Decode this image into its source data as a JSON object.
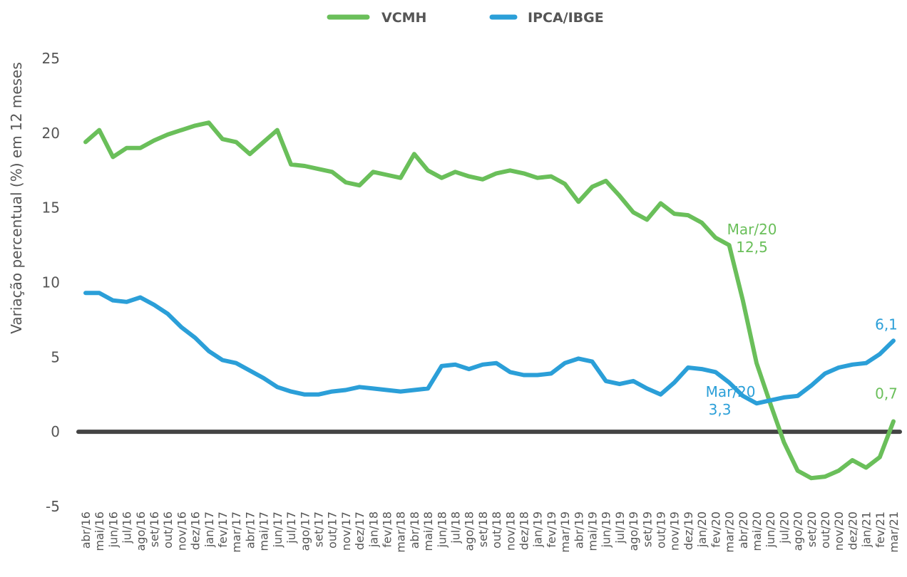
{
  "chart_data": {
    "type": "line",
    "categories": [
      "abr/16",
      "mai/16",
      "jun/16",
      "jul/16",
      "ago/16",
      "set/16",
      "out/16",
      "nov/16",
      "dez/16",
      "jan/17",
      "fev/17",
      "mar/17",
      "abr/17",
      "mai/17",
      "jun/17",
      "jul/17",
      "ago/17",
      "set/17",
      "out/17",
      "nov/17",
      "dez/17",
      "jan/18",
      "fev/18",
      "mar/18",
      "abr/18",
      "mai/18",
      "jun/18",
      "jul/18",
      "ago/18",
      "set/18",
      "out/18",
      "nov/18",
      "dez/18",
      "jan/19",
      "fev/19",
      "mar/19",
      "abr/19",
      "mai/19",
      "jun/19",
      "jul/19",
      "ago/19",
      "set/19",
      "out/19",
      "nov/19",
      "dez/19",
      "jan/20",
      "fev/20",
      "mar/20",
      "abr/20",
      "mai/20",
      "jun/20",
      "jul/20",
      "ago/20",
      "set/20",
      "out/20",
      "nov/20",
      "dez/20",
      "jan/21",
      "fev/21",
      "mar/21"
    ],
    "series": [
      {
        "name": "VCMH",
        "color": "#6abf5a",
        "values": [
          19.4,
          20.2,
          18.4,
          19.0,
          19.0,
          19.5,
          19.9,
          20.2,
          20.5,
          20.7,
          19.6,
          19.4,
          18.6,
          19.4,
          20.2,
          17.9,
          17.8,
          17.6,
          17.4,
          16.7,
          16.5,
          17.4,
          17.2,
          17.0,
          18.6,
          17.5,
          17.0,
          17.4,
          17.1,
          16.9,
          17.3,
          17.5,
          17.3,
          17.0,
          17.1,
          16.6,
          15.4,
          16.4,
          16.8,
          15.8,
          14.7,
          14.2,
          15.3,
          14.6,
          14.5,
          14.0,
          13.0,
          12.5,
          8.8,
          4.6,
          1.9,
          -0.7,
          -2.6,
          -3.1,
          -3.0,
          -2.6,
          -1.9,
          -2.4,
          -1.7,
          0.7
        ],
        "value_labels": [
          null,
          null,
          null,
          null,
          null,
          null,
          null,
          null,
          null,
          null,
          null,
          null,
          null,
          null,
          null,
          null,
          null,
          null,
          null,
          null,
          null,
          null,
          null,
          null,
          null,
          null,
          null,
          null,
          null,
          null,
          null,
          null,
          null,
          null,
          null,
          null,
          null,
          null,
          null,
          null,
          null,
          null,
          null,
          null,
          null,
          null,
          null,
          "12,5",
          null,
          null,
          null,
          null,
          null,
          null,
          null,
          null,
          null,
          null,
          null,
          "0,7"
        ]
      },
      {
        "name": "IPCA/IBGE",
        "color": "#2b9fd8",
        "values": [
          9.3,
          9.3,
          8.8,
          8.7,
          9.0,
          8.5,
          7.9,
          7.0,
          6.3,
          5.4,
          4.8,
          4.6,
          4.1,
          3.6,
          3.0,
          2.7,
          2.5,
          2.5,
          2.7,
          2.8,
          3.0,
          2.9,
          2.8,
          2.7,
          2.8,
          2.9,
          4.4,
          4.5,
          4.2,
          4.5,
          4.6,
          4.0,
          3.8,
          3.8,
          3.9,
          4.6,
          4.9,
          4.7,
          3.4,
          3.2,
          3.4,
          2.9,
          2.5,
          3.3,
          4.3,
          4.2,
          4.0,
          3.3,
          2.4,
          1.9,
          2.1,
          2.3,
          2.4,
          3.1,
          3.9,
          4.3,
          4.5,
          4.6,
          5.2,
          6.1
        ],
        "value_labels": [
          null,
          null,
          null,
          null,
          null,
          null,
          null,
          null,
          null,
          null,
          null,
          null,
          null,
          null,
          null,
          null,
          null,
          null,
          null,
          null,
          null,
          null,
          null,
          null,
          null,
          null,
          null,
          null,
          null,
          null,
          null,
          null,
          null,
          null,
          null,
          null,
          null,
          null,
          null,
          null,
          null,
          null,
          null,
          null,
          null,
          null,
          null,
          "3,3",
          null,
          null,
          null,
          null,
          null,
          null,
          null,
          null,
          null,
          null,
          null,
          "6,1"
        ]
      }
    ],
    "annotations": [
      "Mar/20",
      "Mar/20"
    ],
    "y_label": "Variação percentual (%) em 12 meses",
    "ylim": [
      -5,
      25
    ],
    "yticks": [
      -5,
      0,
      5,
      10,
      15,
      20,
      25
    ],
    "grid": false,
    "zero_line": true,
    "legend": "top"
  }
}
